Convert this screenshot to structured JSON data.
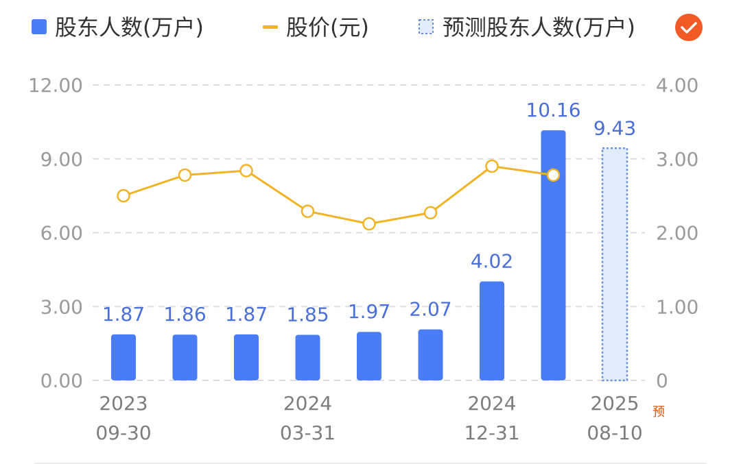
{
  "legend": {
    "items": [
      {
        "label": "股东人数(万户)",
        "color": "#4a7cf6",
        "icon": "square-icon"
      },
      {
        "label": "股价(元)",
        "color": "#f0b323",
        "icon": "line-icon"
      },
      {
        "label": "预测股东人数(万户)",
        "color": "#6b8fd6",
        "icon": "dashed-square-icon"
      }
    ],
    "toggle_icon": "check-circle-icon",
    "toggle_color": "#f15a24"
  },
  "chart_data": {
    "type": "bar",
    "categories": [
      "2023-09-30",
      "",
      "",
      "2024-03-31",
      "",
      "",
      "2024-12-31",
      "",
      "2025-08-10"
    ],
    "x_tick_labels": [
      {
        "index": 0,
        "line1": "2023",
        "line2": "09-30"
      },
      {
        "index": 3,
        "line1": "2024",
        "line2": "03-31"
      },
      {
        "index": 6,
        "line1": "2024",
        "line2": "12-31"
      },
      {
        "index": 8,
        "line1": "2025",
        "line2": "08-10"
      }
    ],
    "predicted_marker": "预",
    "series": [
      {
        "name": "股东人数(万户)",
        "type": "bar",
        "axis": "left",
        "values": [
          1.87,
          1.86,
          1.87,
          1.85,
          1.97,
          2.07,
          4.02,
          10.16,
          null
        ],
        "labels": [
          "1.87",
          "1.86",
          "1.87",
          "1.85",
          "1.97",
          "2.07",
          "4.02",
          "10.16",
          ""
        ],
        "color": "#4a7cf6"
      },
      {
        "name": "股价(元)",
        "type": "line",
        "axis": "right",
        "values": [
          2.5,
          2.78,
          2.84,
          2.29,
          2.12,
          2.27,
          2.9,
          2.78,
          null
        ],
        "color": "#f0b323"
      },
      {
        "name": "预测股东人数(万户)",
        "type": "bar-predicted",
        "axis": "left",
        "values": [
          null,
          null,
          null,
          null,
          null,
          null,
          null,
          null,
          9.43
        ],
        "labels": [
          "",
          "",
          "",
          "",
          "",
          "",
          "",
          "",
          "9.43"
        ],
        "color": "#6b8fd6",
        "fill": "#e3ecfb"
      }
    ],
    "y_left": {
      "ticks": [
        "0.00",
        "3.00",
        "6.00",
        "9.00",
        "12.00"
      ],
      "min": 0,
      "max": 12
    },
    "y_right": {
      "ticks": [
        "0",
        "1.00",
        "2.00",
        "3.00",
        "4.00"
      ],
      "min": 0,
      "max": 4
    },
    "grid": true
  }
}
